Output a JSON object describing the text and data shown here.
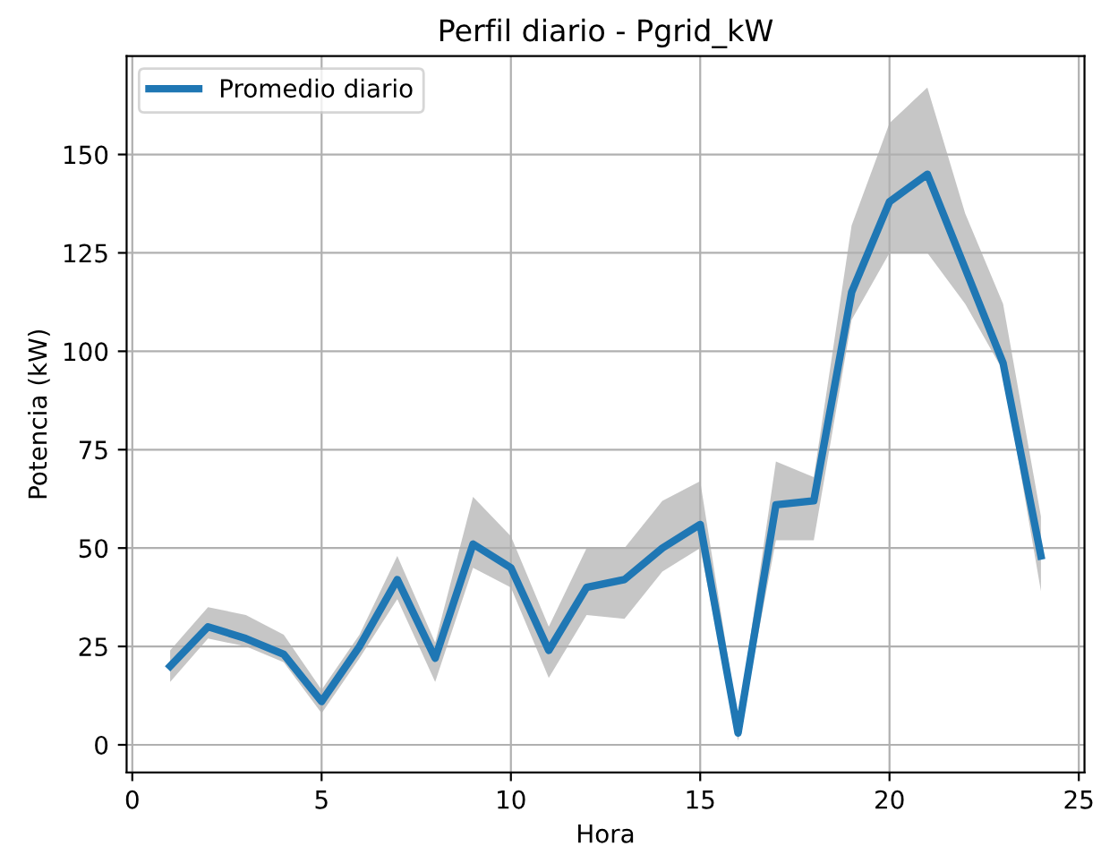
{
  "chart_data": {
    "type": "line",
    "title": "Perfil diario - Pgrid_kW",
    "xlabel": "Hora",
    "ylabel": "Potencia (kW)",
    "x": [
      1,
      2,
      3,
      4,
      5,
      6,
      7,
      8,
      9,
      10,
      11,
      12,
      13,
      14,
      15,
      16,
      17,
      18,
      19,
      20,
      21,
      22,
      23,
      24
    ],
    "series": [
      {
        "name": "Promedio diario",
        "color": "#1f77b4",
        "values": [
          20,
          30,
          27,
          23,
          11,
          25,
          42,
          22,
          51,
          45,
          24,
          40,
          42,
          50,
          56,
          3,
          61,
          62,
          115,
          138,
          145,
          121,
          97,
          48
        ],
        "lower": [
          16,
          27,
          25,
          21,
          8,
          22,
          37,
          16,
          45,
          40,
          17,
          33,
          32,
          44,
          50,
          1,
          52,
          52,
          108,
          125,
          125,
          112,
          95,
          39
        ],
        "upper": [
          24,
          35,
          33,
          28,
          14,
          28,
          48,
          26,
          63,
          53,
          30,
          50,
          50,
          62,
          67,
          6,
          72,
          68,
          132,
          158,
          167,
          135,
          112,
          58
        ]
      }
    ],
    "xlim": [
      -0.15,
      25.15
    ],
    "ylim": [
      -7,
      175
    ],
    "xticks": [
      0,
      5,
      10,
      15,
      20,
      25
    ],
    "yticks": [
      0,
      25,
      50,
      75,
      100,
      125,
      150
    ],
    "grid": true,
    "legend": "top left",
    "marker": "none",
    "line_style": "solid"
  }
}
